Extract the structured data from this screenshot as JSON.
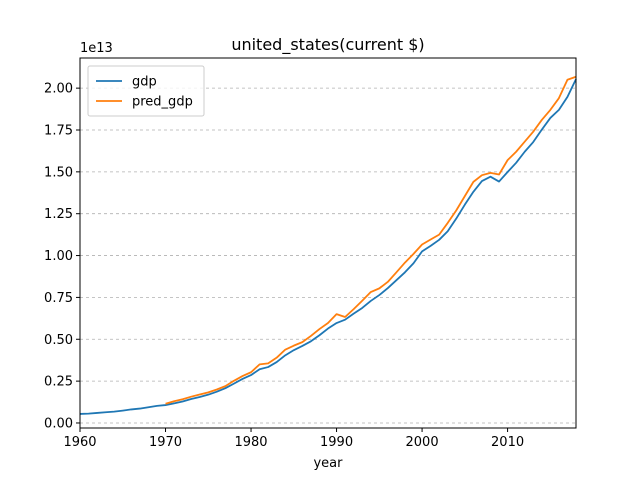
{
  "chart_data": {
    "type": "line",
    "title": "united_states(current $)",
    "xlabel": "year",
    "ylabel": "",
    "y_offset_text": "1e13",
    "y_multiplier": 10000000000000,
    "xlim": [
      1960,
      2018
    ],
    "ylim": [
      -0.03,
      2.18
    ],
    "x_ticks": [
      1960,
      1970,
      1980,
      1990,
      2000,
      2010
    ],
    "x_tick_labels": [
      "1960",
      "1970",
      "1980",
      "1990",
      "2000",
      "2010"
    ],
    "y_ticks": [
      0.0,
      0.25,
      0.5,
      0.75,
      1.0,
      1.25,
      1.5,
      1.75,
      2.0
    ],
    "y_tick_labels": [
      "0.00",
      "0.25",
      "0.50",
      "0.75",
      "1.00",
      "1.25",
      "1.50",
      "1.75",
      "2.00"
    ],
    "grid": "horizontal dashed",
    "legend_position": "top-left",
    "series": [
      {
        "name": "gdp",
        "color": "#1f77b4",
        "x": [
          1960,
          1961,
          1962,
          1963,
          1964,
          1965,
          1966,
          1967,
          1968,
          1969,
          1970,
          1971,
          1972,
          1973,
          1974,
          1975,
          1976,
          1977,
          1978,
          1979,
          1980,
          1981,
          1982,
          1983,
          1984,
          1985,
          1986,
          1987,
          1988,
          1989,
          1990,
          1991,
          1992,
          1993,
          1994,
          1995,
          1996,
          1997,
          1998,
          1999,
          2000,
          2001,
          2002,
          2003,
          2004,
          2005,
          2006,
          2007,
          2008,
          2009,
          2010,
          2011,
          2012,
          2013,
          2014,
          2015,
          2016,
          2017,
          2018
        ],
        "values": [
          0.054,
          0.056,
          0.06,
          0.064,
          0.068,
          0.074,
          0.081,
          0.086,
          0.094,
          0.102,
          0.107,
          0.117,
          0.128,
          0.143,
          0.155,
          0.169,
          0.187,
          0.208,
          0.235,
          0.263,
          0.286,
          0.321,
          0.334,
          0.364,
          0.404,
          0.435,
          0.46,
          0.488,
          0.524,
          0.564,
          0.597,
          0.617,
          0.653,
          0.687,
          0.729,
          0.764,
          0.806,
          0.853,
          0.9,
          0.954,
          1.025,
          1.058,
          1.094,
          1.145,
          1.221,
          1.304,
          1.381,
          1.445,
          1.471,
          1.442,
          1.499,
          1.554,
          1.62,
          1.678,
          1.752,
          1.822,
          1.87,
          1.948,
          2.054
        ]
      },
      {
        "name": "pred_gdp",
        "color": "#ff7f0e",
        "x": [
          1970,
          1971,
          1972,
          1973,
          1974,
          1975,
          1976,
          1977,
          1978,
          1979,
          1980,
          1981,
          1982,
          1983,
          1984,
          1985,
          1986,
          1987,
          1988,
          1989,
          1990,
          1991,
          1992,
          1993,
          1994,
          1995,
          1996,
          1997,
          1998,
          1999,
          2000,
          2001,
          2002,
          2003,
          2004,
          2005,
          2006,
          2007,
          2008,
          2009,
          2010,
          2011,
          2012,
          2013,
          2014,
          2015,
          2016,
          2017,
          2018
        ],
        "values": [
          0.115,
          0.13,
          0.142,
          0.157,
          0.17,
          0.183,
          0.2,
          0.22,
          0.252,
          0.28,
          0.303,
          0.35,
          0.356,
          0.39,
          0.438,
          0.462,
          0.483,
          0.52,
          0.561,
          0.597,
          0.65,
          0.633,
          0.68,
          0.73,
          0.782,
          0.804,
          0.843,
          0.9,
          0.958,
          1.01,
          1.066,
          1.096,
          1.125,
          1.195,
          1.27,
          1.355,
          1.44,
          1.48,
          1.494,
          1.484,
          1.57,
          1.62,
          1.68,
          1.74,
          1.81,
          1.87,
          1.94,
          2.05,
          2.068
        ]
      }
    ]
  }
}
